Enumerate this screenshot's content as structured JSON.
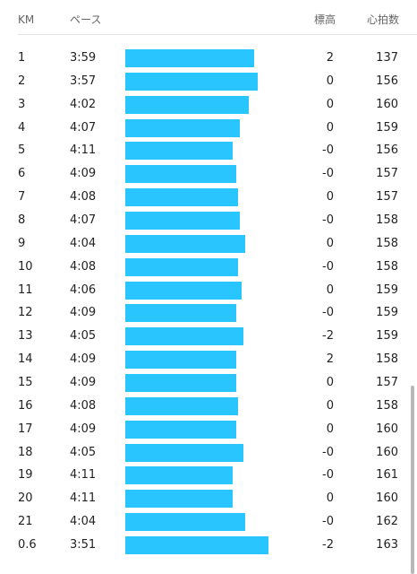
{
  "header": {
    "km": "KM",
    "pace": "ペース",
    "elevation": "標高",
    "heart_rate": "心拍数"
  },
  "rows": [
    [
      "1",
      "3:59",
      "2",
      "137"
    ],
    [
      "2",
      "3:57",
      "0",
      "156"
    ],
    [
      "3",
      "4:02",
      "0",
      "160"
    ],
    [
      "4",
      "4:07",
      "0",
      "159"
    ],
    [
      "5",
      "4:11",
      "-0",
      "156"
    ],
    [
      "6",
      "4:09",
      "-0",
      "157"
    ],
    [
      "7",
      "4:08",
      "0",
      "157"
    ],
    [
      "8",
      "4:07",
      "-0",
      "158"
    ],
    [
      "9",
      "4:04",
      "0",
      "158"
    ],
    [
      "10",
      "4:08",
      "-0",
      "158"
    ],
    [
      "11",
      "4:06",
      "0",
      "159"
    ],
    [
      "12",
      "4:09",
      "-0",
      "159"
    ],
    [
      "13",
      "4:05",
      "-2",
      "159"
    ],
    [
      "14",
      "4:09",
      "2",
      "158"
    ],
    [
      "15",
      "4:09",
      "0",
      "157"
    ],
    [
      "16",
      "4:08",
      "0",
      "158"
    ],
    [
      "17",
      "4:09",
      "0",
      "160"
    ],
    [
      "18",
      "4:05",
      "-0",
      "160"
    ],
    [
      "19",
      "4:11",
      "-0",
      "161"
    ],
    [
      "20",
      "4:11",
      "0",
      "160"
    ],
    [
      "21",
      "4:04",
      "-0",
      "162"
    ],
    [
      "0.6",
      "3:51",
      "-2",
      "163"
    ]
  ]
}
